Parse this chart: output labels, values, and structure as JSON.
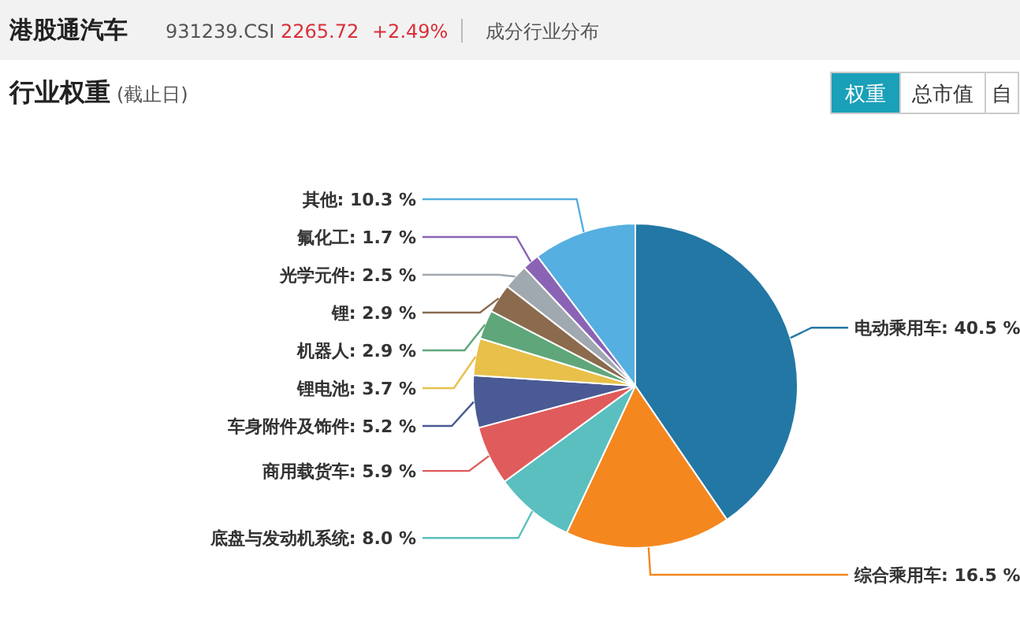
{
  "chart_data": {
    "type": "pie",
    "title": "行业权重",
    "subtitle": "(截止日)",
    "annotations": [
      "港股通汽车",
      "931239.CSI",
      "2265.72",
      "+2.49%",
      "成分行业分布",
      "权重",
      "总市值",
      "自"
    ],
    "categories": [
      "电动乘用车",
      "综合乘用车",
      "底盘与发动机系统",
      "商用载货车",
      "车身附件及饰件",
      "锂电池",
      "机器人",
      "锂",
      "光学元件",
      "氟化工",
      "其他"
    ],
    "values": [
      40.5,
      16.5,
      8.0,
      5.9,
      5.2,
      3.7,
      2.9,
      2.9,
      2.5,
      1.7,
      10.3
    ],
    "value_labels": [
      "40.5 %",
      "16.5 %",
      "8.0 %",
      "5.9 %",
      "5.2 %",
      "3.7 %",
      "2.9 %",
      "2.9 %",
      "2.5 %",
      "1.7 %",
      "10.3 %"
    ],
    "colors": [
      "#2377a4",
      "#f5871f",
      "#5bbfbf",
      "#e05b5b",
      "#4a5a94",
      "#e8c04a",
      "#5fa67a",
      "#8b6a4e",
      "#a0a8b0",
      "#8a63b5",
      "#55afe0"
    ]
  }
}
